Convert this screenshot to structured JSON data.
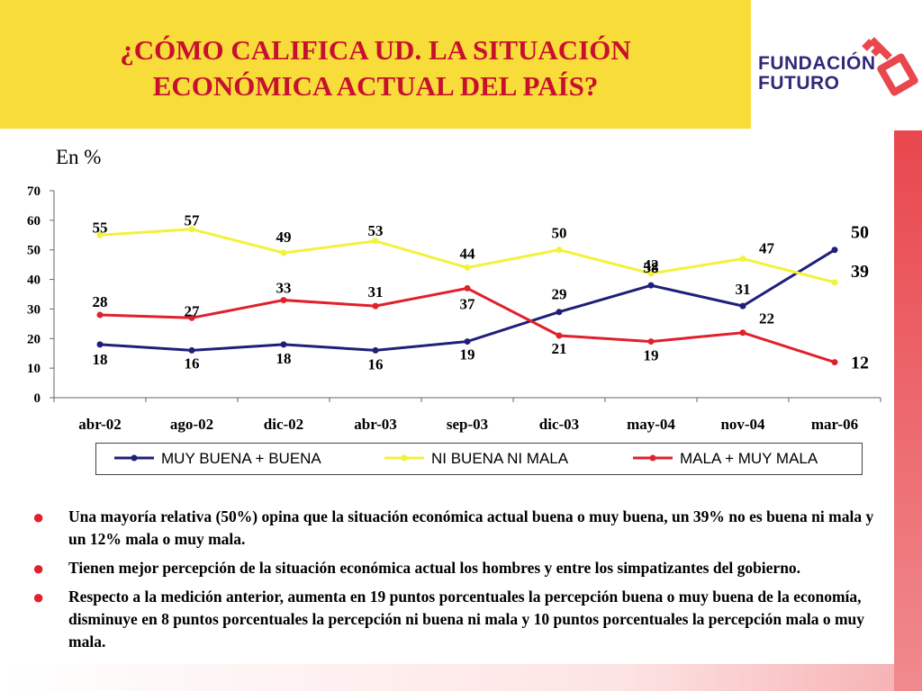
{
  "header": {
    "title_line1": "¿CÓMO CALIFICA UD. LA SITUACIÓN",
    "title_line2": "ECONÓMICA ACTUAL DEL PAÍS?"
  },
  "logo": {
    "line1": "FUNDACIÓN",
    "line2": "FUTURO",
    "icon": "key-icon"
  },
  "unit_label": "En %",
  "chart_data": {
    "type": "line",
    "categories": [
      "abr-02",
      "ago-02",
      "dic-02",
      "abr-03",
      "sep-03",
      "dic-03",
      "may-04",
      "nov-04",
      "mar-06"
    ],
    "ylim": [
      0,
      70
    ],
    "yticks": [
      0,
      10,
      20,
      30,
      40,
      50,
      60,
      70
    ],
    "grid": false,
    "legend_position": "bottom",
    "series": [
      {
        "name": "MUY BUENA + BUENA",
        "color": "#1f1f7a",
        "values": [
          18,
          16,
          18,
          16,
          19,
          29,
          38,
          31,
          50
        ]
      },
      {
        "name": "NI BUENA NI MALA",
        "color": "#f2f23c",
        "values": [
          55,
          57,
          49,
          53,
          44,
          50,
          42,
          47,
          39
        ]
      },
      {
        "name": "MALA + MUY MALA",
        "color": "#e0202a",
        "values": [
          28,
          27,
          33,
          31,
          37,
          21,
          19,
          22,
          12
        ]
      }
    ]
  },
  "bullets": [
    "Una mayoría relativa (50%) opina que la situación económica actual buena o muy buena, un 39% no es buena ni mala y un 12% mala o muy mala.",
    "Tienen mejor percepción de la situación económica actual los hombres y entre los simpatizantes del gobierno.",
    "Respecto a la medición anterior, aumenta en 19 puntos porcentuales la percepción buena o muy buena de la economía, disminuye en 8 puntos porcentuales la percepción ni buena ni mala y 10 puntos porcentuales la percepción mala o muy mala."
  ]
}
